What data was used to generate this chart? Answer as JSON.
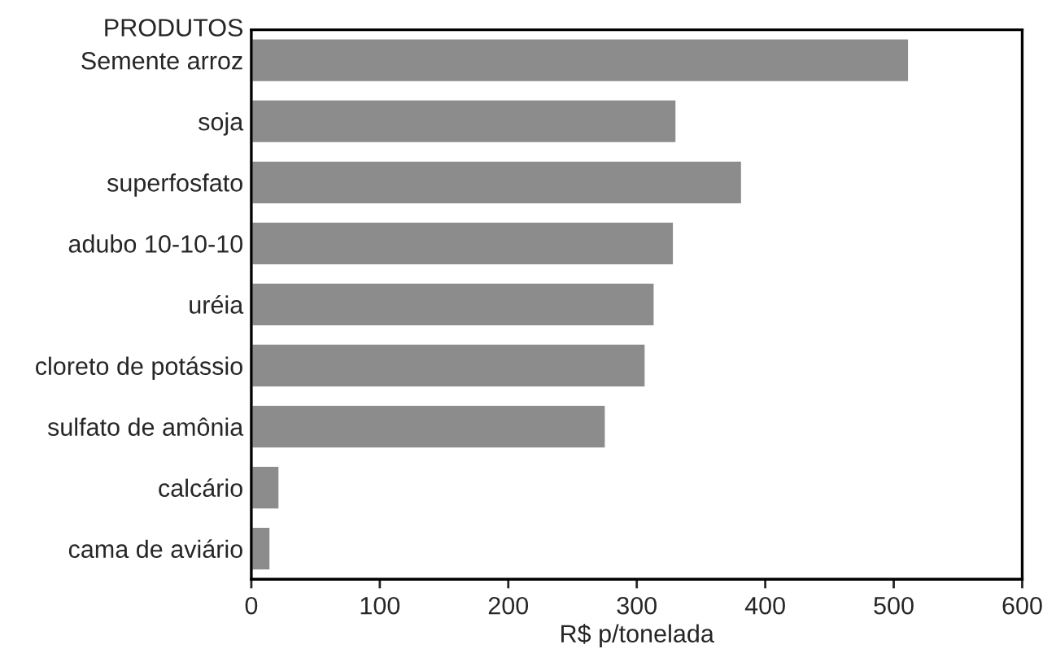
{
  "chart_data": {
    "type": "bar",
    "orientation": "horizontal",
    "ylabel": "PRODUTOS",
    "xlabel": "R$ p/tonelada",
    "categories": [
      "Semente arroz",
      "soja",
      "superfosfato",
      "adubo 10-10-10",
      "uréia",
      "cloreto de potássio",
      "sulfato de amônia",
      "calcário",
      "cama de aviário"
    ],
    "values": [
      512,
      331,
      382,
      329,
      314,
      307,
      276,
      22,
      15
    ],
    "color": "#8c8c8c",
    "xlim": [
      0,
      600
    ],
    "xticks": [
      0,
      100,
      200,
      300,
      400,
      500,
      600
    ],
    "grid": false,
    "legend": false
  }
}
